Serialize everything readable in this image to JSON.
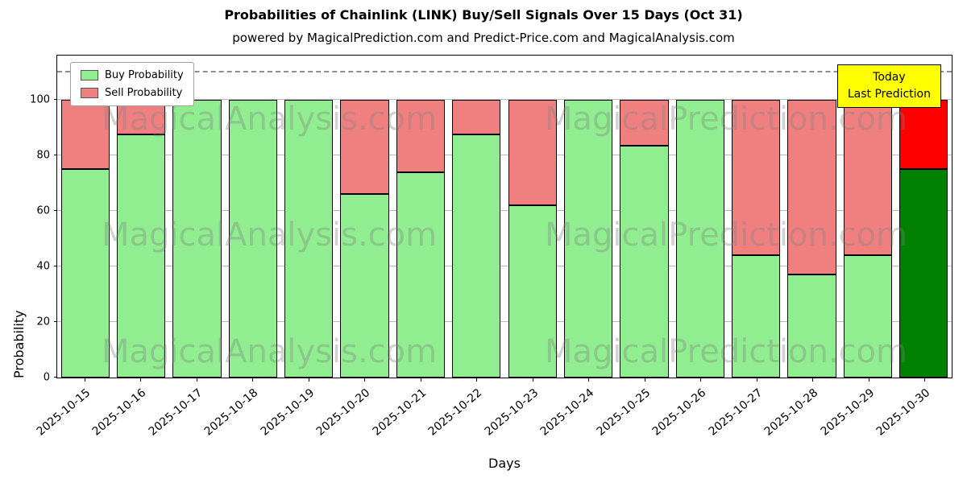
{
  "header": {
    "title": "Probabilities of Chainlink (LINK) Buy/Sell Signals Over 15 Days (Oct 31)",
    "subtitle": "powered by MagicalPrediction.com and Predict-Price.com and MagicalAnalysis.com"
  },
  "annotation": {
    "line1": "Today",
    "line2": "Last Prediction",
    "bg_color": "#ffff00"
  },
  "watermarks": {
    "left": "MagicalAnalysis.com",
    "right": "MagicalPrediction.com"
  },
  "chart_data": {
    "type": "bar",
    "stacked": true,
    "title": "Probabilities of Chainlink (LINK) Buy/Sell Signals Over 15 Days (Oct 31)",
    "xlabel": "Days",
    "ylabel": "Probability",
    "ylim": [
      0,
      116
    ],
    "yticks": [
      0,
      20,
      40,
      60,
      80,
      100
    ],
    "dashed_line_y": 110,
    "grid": true,
    "legend_position": "upper left",
    "categories": [
      "2025-10-15",
      "2025-10-16",
      "2025-10-17",
      "2025-10-18",
      "2025-10-19",
      "2025-10-20",
      "2025-10-21",
      "2025-10-22",
      "2025-10-23",
      "2025-10-24",
      "2025-10-25",
      "2025-10-26",
      "2025-10-27",
      "2025-10-28",
      "2025-10-29",
      "2025-10-30"
    ],
    "series": [
      {
        "name": "Buy Probability",
        "color": "#90ee90",
        "values": [
          75,
          87.5,
          100,
          100,
          100,
          66,
          74,
          87.5,
          62,
          100,
          83.5,
          100,
          44,
          37,
          44,
          75
        ]
      },
      {
        "name": "Sell Probability",
        "color": "#f08080",
        "values": [
          25,
          12.5,
          0,
          0,
          0,
          34,
          26,
          12.5,
          38,
          0,
          16.5,
          0,
          56,
          63,
          56,
          25
        ]
      }
    ],
    "today_bar": {
      "index": 15,
      "buy_color": "#008000",
      "sell_color": "#ff0000"
    }
  }
}
